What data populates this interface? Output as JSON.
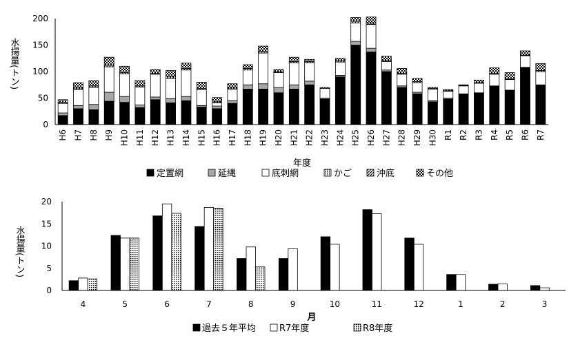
{
  "colors": {
    "black": "#000000",
    "gray": "#a6a6a6",
    "white": "#ffffff",
    "axis": "#000000"
  },
  "chart_data": [
    {
      "type": "bar",
      "stacked": true,
      "ylabel": "水揚量(トン)",
      "xlabel": "年度",
      "ylim": [
        0,
        200
      ],
      "yticks": [
        0,
        50,
        100,
        150,
        200
      ],
      "grid": false,
      "legend_position": "bottom",
      "categories": [
        "H6",
        "H7",
        "H8",
        "H9",
        "H10",
        "H11",
        "H12",
        "H13",
        "H14",
        "H15",
        "H16",
        "H17",
        "H18",
        "H19",
        "H20",
        "H21",
        "H22",
        "H23",
        "H24",
        "H25",
        "H26",
        "H27",
        "H28",
        "H29",
        "H30",
        "R1",
        "R2",
        "R3",
        "R4",
        "R5",
        "R6",
        "R7"
      ],
      "series": [
        {
          "name": "定置網",
          "pattern": "solid-black",
          "values": [
            17,
            30,
            28,
            44,
            42,
            32,
            47,
            41,
            45,
            33,
            30,
            40,
            67,
            67,
            60,
            67,
            75,
            48,
            90,
            150,
            137,
            100,
            70,
            58,
            43,
            48,
            58,
            60,
            73,
            65,
            108,
            75
          ]
        },
        {
          "name": "延縄",
          "pattern": "solid-gray",
          "values": [
            5,
            6,
            10,
            17,
            11,
            5,
            5,
            8,
            8,
            3,
            5,
            5,
            8,
            10,
            10,
            8,
            7,
            2,
            3,
            7,
            7,
            3,
            3,
            3,
            2,
            2,
            0,
            0,
            0,
            0,
            0,
            0
          ]
        },
        {
          "name": "底刺網",
          "pattern": "white",
          "values": [
            18,
            30,
            32,
            48,
            43,
            34,
            43,
            38,
            50,
            30,
            6,
            22,
            28,
            58,
            28,
            42,
            35,
            18,
            25,
            35,
            45,
            16,
            22,
            18,
            22,
            13,
            15,
            18,
            22,
            20,
            22,
            25
          ]
        },
        {
          "name": "かご",
          "pattern": "dots",
          "values": [
            0,
            0,
            0,
            0,
            0,
            0,
            0,
            0,
            0,
            0,
            0,
            0,
            0,
            0,
            0,
            0,
            0,
            0,
            0,
            0,
            0,
            0,
            0,
            0,
            0,
            0,
            0,
            0,
            0,
            0,
            0,
            0
          ]
        },
        {
          "name": "沖底",
          "pattern": "diagonal",
          "values": [
            2,
            3,
            3,
            3,
            2,
            2,
            2,
            3,
            3,
            2,
            2,
            2,
            3,
            3,
            2,
            2,
            2,
            0,
            2,
            3,
            3,
            2,
            2,
            2,
            1,
            1,
            1,
            1,
            2,
            1,
            1,
            2
          ]
        },
        {
          "name": "その他",
          "pattern": "checker",
          "values": [
            5,
            10,
            10,
            15,
            12,
            10,
            7,
            12,
            10,
            12,
            8,
            8,
            7,
            10,
            4,
            8,
            4,
            2,
            5,
            7,
            11,
            8,
            9,
            6,
            2,
            2,
            1,
            5,
            10,
            12,
            8,
            13
          ]
        }
      ]
    },
    {
      "type": "bar",
      "ylabel": "水揚量(トン)",
      "xlabel": "月",
      "ylim": [
        0,
        20
      ],
      "yticks": [
        0,
        5,
        10,
        15,
        20
      ],
      "grid": false,
      "legend_position": "bottom",
      "categories": [
        "4",
        "5",
        "6",
        "7",
        "8",
        "9",
        "10",
        "11",
        "12",
        "1",
        "2",
        "3"
      ],
      "series": [
        {
          "name": "過去５年平均",
          "pattern": "solid-black",
          "values": [
            2.2,
            12.4,
            16.8,
            14.4,
            7.2,
            7.2,
            12.1,
            18.2,
            11.8,
            3.6,
            1.4,
            1.1
          ]
        },
        {
          "name": "R7年度",
          "pattern": "white",
          "values": [
            2.8,
            11.8,
            19.5,
            18.7,
            9.8,
            9.4,
            10.4,
            17.3,
            10.4,
            3.6,
            1.5,
            0.6
          ]
        },
        {
          "name": "R8年度",
          "pattern": "dots",
          "values": [
            2.6,
            11.8,
            17.4,
            18.5,
            5.3,
            null,
            null,
            null,
            null,
            null,
            null,
            null
          ]
        }
      ]
    }
  ]
}
